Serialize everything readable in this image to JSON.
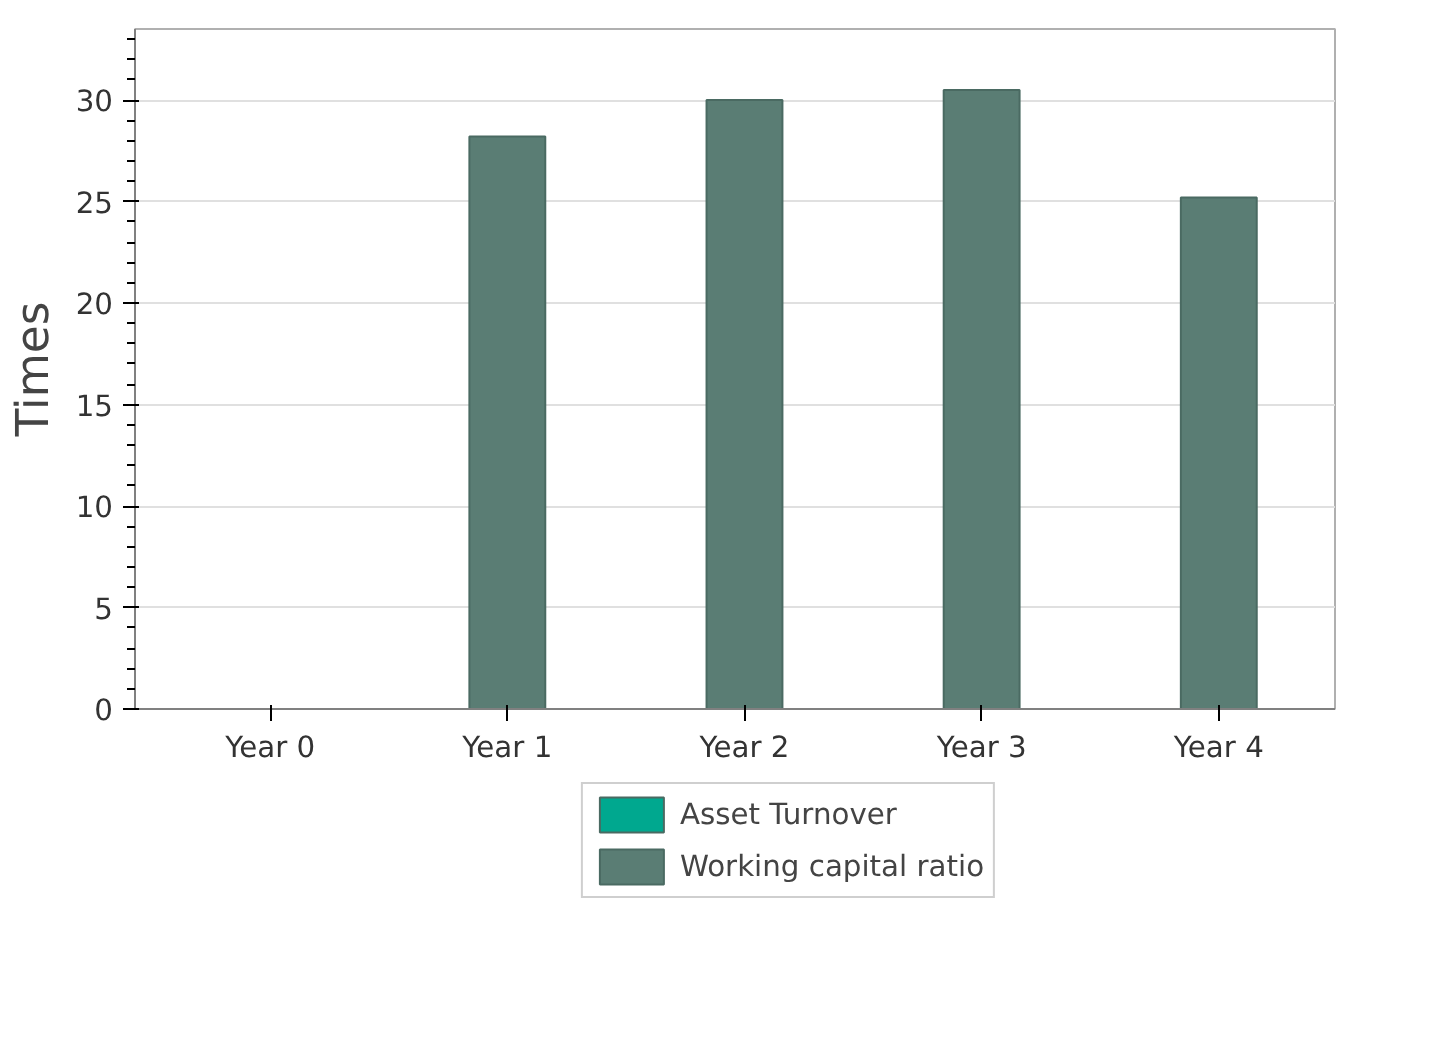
{
  "chart_data": {
    "type": "bar",
    "ylabel": "Times",
    "categories": [
      "Year 0",
      "Year 1",
      "Year 2",
      "Year 3",
      "Year 4"
    ],
    "series": [
      {
        "name": "Asset Turnover",
        "color": "#00a88f",
        "values": [
          null,
          null,
          null,
          null,
          null
        ]
      },
      {
        "name": "Working capital ratio",
        "color": "#5a7d74",
        "values": [
          null,
          28.2,
          30.0,
          30.5,
          25.2
        ]
      }
    ],
    "ylim": [
      0,
      33.5
    ],
    "yticks": [
      0,
      5,
      10,
      15,
      20,
      25,
      30
    ],
    "grid": "y",
    "legend": "bottom"
  }
}
